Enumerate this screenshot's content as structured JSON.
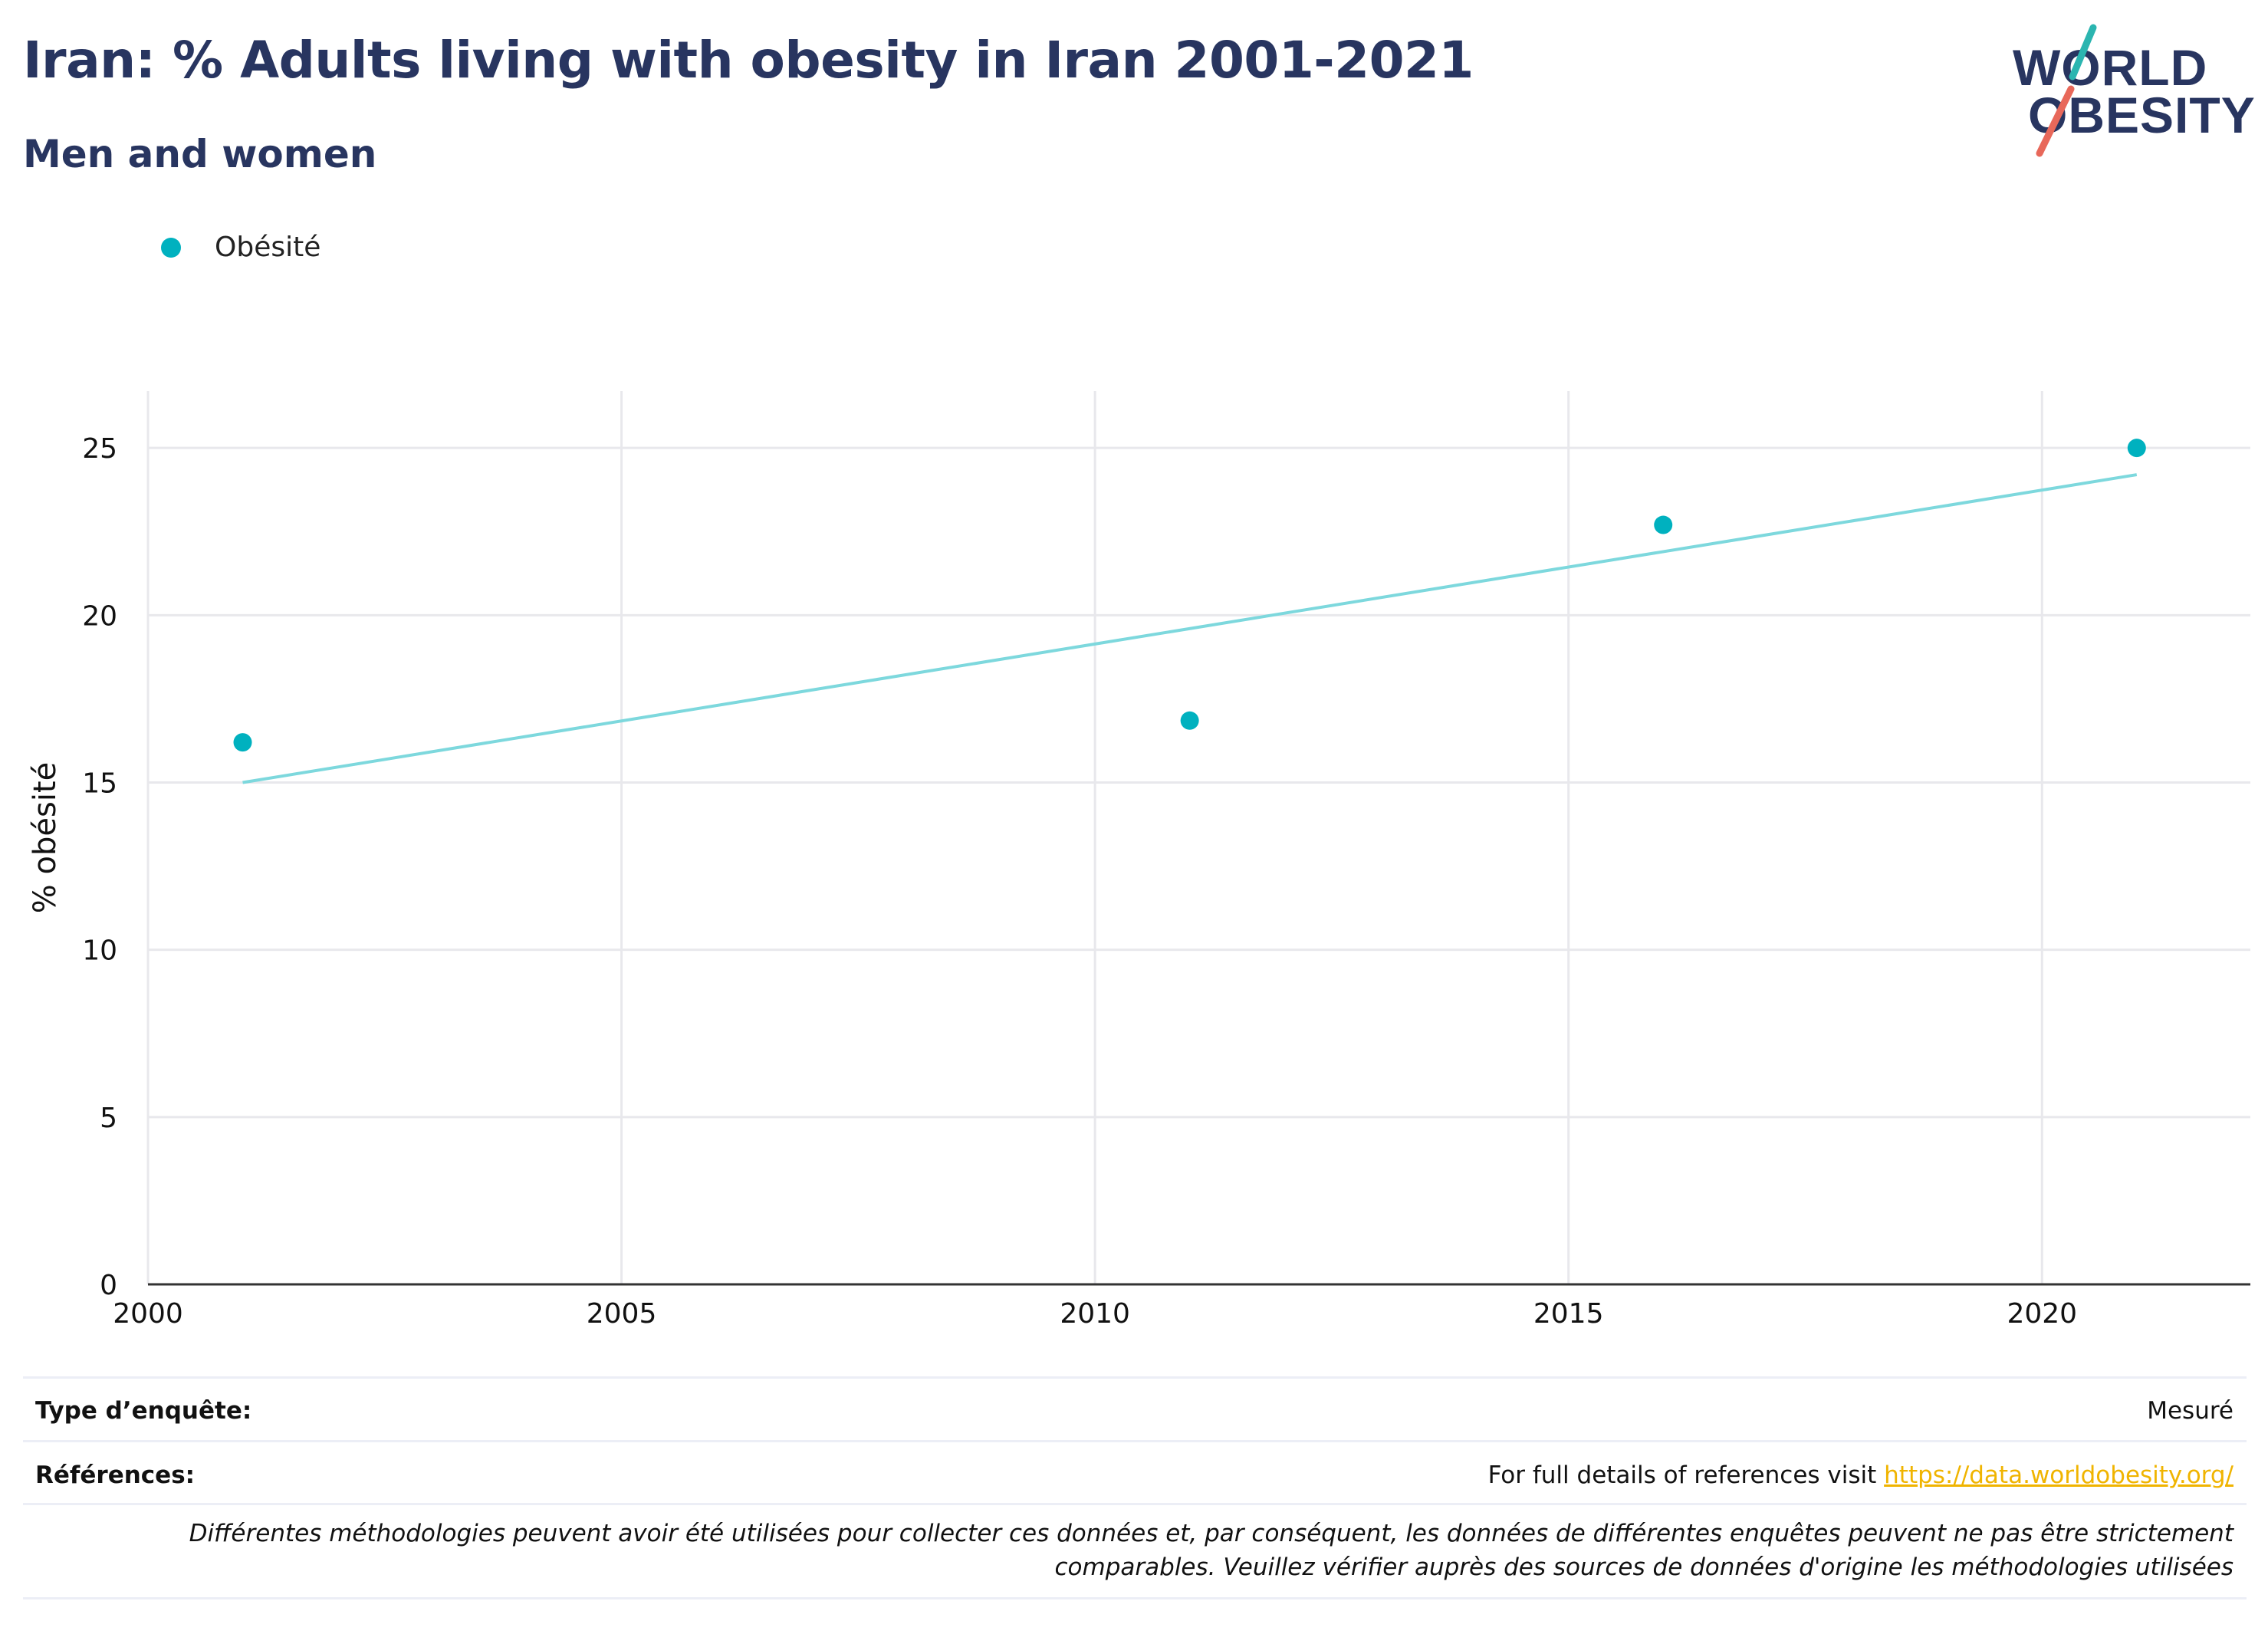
{
  "header": {
    "title": "Iran: % Adults living with obesity in Iran 2001-2021",
    "subtitle": "Men and women"
  },
  "logo": {
    "line1": "WORLD",
    "line2": "OBESITY",
    "colors": {
      "text": "#283560",
      "teal": "#2bb5b0",
      "coral": "#e8685a"
    }
  },
  "legend": {
    "items": [
      {
        "label": "Obésité",
        "color": "#00b1bf"
      }
    ]
  },
  "chart_data": {
    "type": "scatter",
    "title": "Iran: % Adults living with obesity in Iran 2001-2021",
    "subtitle": "Men and women",
    "xlabel": "",
    "ylabel": "% obésité",
    "xlim": [
      2000,
      2022.2
    ],
    "ylim": [
      0,
      26.7
    ],
    "x_ticks": [
      2000,
      2005,
      2010,
      2015,
      2020
    ],
    "y_ticks": [
      0,
      5,
      10,
      15,
      20,
      25
    ],
    "grid": true,
    "legend_position": "top-left",
    "series": [
      {
        "name": "Obésité",
        "color": "#00b1bf",
        "points": [
          {
            "x": 2001,
            "y": 16.2
          },
          {
            "x": 2011,
            "y": 16.85
          },
          {
            "x": 2016,
            "y": 22.7
          },
          {
            "x": 2021,
            "y": 25.0
          }
        ]
      }
    ],
    "trendline": {
      "color": "#7dd8dd",
      "start": {
        "x": 2001,
        "y": 15.0
      },
      "end": {
        "x": 2021,
        "y": 24.2
      }
    }
  },
  "footer": {
    "survey_type_label": "Type d’enquête:",
    "survey_type_value": "Mesuré",
    "references_label": "Références:",
    "references_text": "For full details of references visit ",
    "references_link": "https://data.worldobesity.org/",
    "disclaimer_line1": "Différentes méthodologies peuvent avoir été utilisées pour collecter ces données et, par conséquent, les données de différentes enquêtes peuvent ne pas être strictement",
    "disclaimer_line2": "comparables. Veuillez vérifier auprès des sources de données d'origine les méthodologies utilisées"
  }
}
